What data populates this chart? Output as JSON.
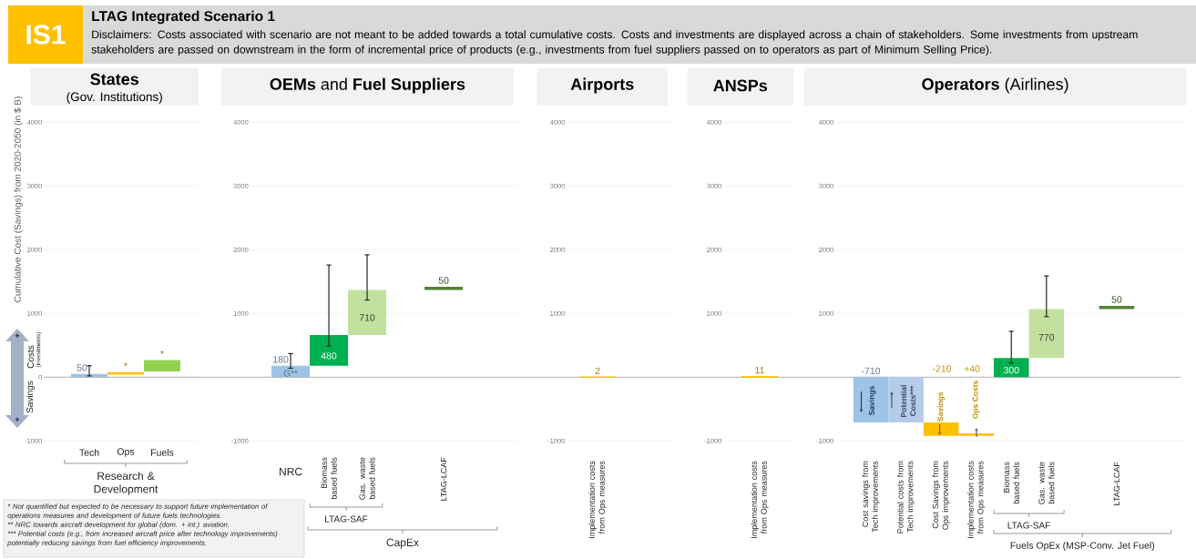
{
  "chart_data": [
    {
      "type": "other",
      "title": "LTAG Integrated Scenario 1",
      "subtitle": "Disclaimers: Costs associated with scenario are not meant to be added towards a total cumulative costs. Costs and investments are displayed across a chain of stakeholders. Some investments from upstream stakeholders are passed on downstream in the form of incremental price of products (e.g., investments from fuel suppliers passed on to operators as part of Minimum Selling Price).",
      "annotations": [
        "IS1",
        "* Not quantified but expected to be necessary to support future implementation of operations measures and development of future fuels technologies.",
        "** NRC towards aircraft development for global (dom. + int.) aviation.",
        "*** Potential costs (e.g., from increased aircraft price after technology improvements) potentially reducing savings from fuel efficiency improvements."
      ]
    },
    {
      "type": "bar",
      "title": "States",
      "subtitle": "(Gov. Institutions)",
      "ylabel": "Cumulative Cost (Savings) from 2020-2050 (in $ B)",
      "categories": [
        "Tech",
        "Ops",
        "Fuels"
      ],
      "values": [
        50,
        40,
        180
      ],
      "base": [
        0,
        40,
        90
      ],
      "colors": [
        "#9dc3e6",
        "#ffc000",
        "#92d050"
      ],
      "value_labels": [
        "50",
        "*",
        "*"
      ],
      "errors": [
        [
          20,
          180
        ],
        null,
        null
      ],
      "ylim": [
        -1000,
        4000
      ],
      "yticks": [
        -1000,
        0,
        1000,
        2000,
        3000,
        4000
      ],
      "grid": "y",
      "annotations": [
        "Costs",
        "(investments)",
        "Savings",
        "+",
        "+",
        "Research & Development"
      ]
    },
    {
      "type": "bar",
      "title": "**OEMs** and **Fuel Suppliers**",
      "categories": [
        "NRC",
        "Biomass based fuels",
        "Gas. waste based fuels",
        null,
        "LTAG-LCAF"
      ],
      "values": [
        180,
        480,
        710,
        null,
        50
      ],
      "base": [
        0,
        180,
        660,
        null,
        1370
      ],
      "colors": [
        "#9dc3e6",
        "#00b050",
        "#c2e19f",
        null,
        "#548235"
      ],
      "value_labels": [
        "180",
        "480",
        "710",
        null,
        "50"
      ],
      "errors": [
        [
          140,
          370
        ],
        [
          490,
          1760
        ],
        [
          1210,
          1920
        ],
        null,
        null
      ],
      "ylim": [
        -1000,
        4000
      ],
      "yticks": [
        -1000,
        1000,
        2000,
        3000,
        4000
      ],
      "grid": "y",
      "annotations": [
        {
          "text": "G**",
          "x": "NRC",
          "y": 60
        },
        "LTAG-SAF",
        "CapEx"
      ]
    },
    {
      "type": "bar",
      "title": "Airports",
      "categories": [
        "Implementation costs from Ops measures"
      ],
      "values": [
        2
      ],
      "colors": [
        "#ffc000"
      ],
      "data_labels": true,
      "ylim": [
        -1000,
        4000
      ],
      "yticks": [
        -1000,
        1000,
        2000,
        3000,
        4000
      ],
      "grid": "y"
    },
    {
      "type": "bar",
      "title": "ANSPs",
      "categories": [
        "Implementation costs from Ops measures"
      ],
      "values": [
        11
      ],
      "colors": [
        "#ffc000"
      ],
      "data_labels": true,
      "ylim": [
        -1000,
        4000
      ],
      "yticks": [
        -1000,
        1000,
        2000,
        3000,
        4000
      ],
      "grid": "y"
    },
    {
      "type": "bar",
      "title": "**Operators** (Airlines)",
      "categories": [
        "Cost savings from Tech improvements",
        "Potential costs from Tech improvements",
        "Cost Savings from Ops improvements",
        "Implementation costs from Ops measures",
        "Biomass based fuels",
        "Gas. waste based fuels",
        null,
        "LTAG-LCAF"
      ],
      "values": [
        -710,
        710,
        -210,
        40,
        300,
        770,
        null,
        50
      ],
      "base": [
        0,
        -710,
        -710,
        -920,
        0,
        300,
        null,
        1070
      ],
      "colors": [
        "#9dc3e6",
        "#b4cce9",
        "#ffc000",
        "#ffc000",
        "#00b050",
        "#c2e19f",
        null,
        "#548235"
      ],
      "value_labels": [
        "-710",
        null,
        null,
        null,
        "300",
        "770",
        null,
        "50"
      ],
      "errors": [
        null,
        null,
        null,
        null,
        [
          220,
          720
        ],
        [
          950,
          1590
        ],
        null,
        null
      ],
      "ylim": [
        -1000,
        4000
      ],
      "yticks": [
        -1000,
        1000,
        2000,
        3000,
        4000
      ],
      "grid": "y",
      "annotations": [
        "Savings",
        "Potential Costs***",
        "Savings",
        "Ops Costs",
        "-210",
        "+40",
        "LTAG-SAF",
        "Fuels OpEx (MSP-Conv. Jet Fuel)"
      ]
    }
  ]
}
